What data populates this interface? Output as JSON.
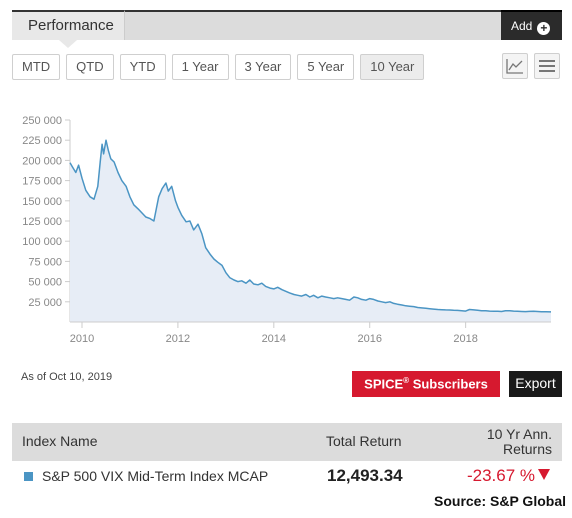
{
  "header": {
    "tab_label": "Performance",
    "add_label": "Add"
  },
  "periods": [
    "MTD",
    "QTD",
    "YTD",
    "1 Year",
    "3 Year",
    "5 Year",
    "10 Year"
  ],
  "active_period": "10 Year",
  "chart_icons": [
    "line-chart-icon",
    "menu-icon"
  ],
  "chart_data": {
    "type": "area",
    "y_ticks": [
      "250 000",
      "225 000",
      "200 000",
      "175 000",
      "150 000",
      "125 000",
      "100 000",
      "75 000",
      "50 000",
      "25 000"
    ],
    "x_ticks": [
      "2010",
      "2012",
      "2014",
      "2016",
      "2018"
    ],
    "ylim": [
      0,
      250000
    ],
    "xlim": [
      2009.75,
      2019.78
    ],
    "grid": false,
    "colors": {
      "line": "#4b95c4",
      "fill": "#e7edf6"
    },
    "series": [
      {
        "values": [
          [
            2009.75,
            197000
          ],
          [
            2009.8,
            192000
          ],
          [
            2009.87,
            185000
          ],
          [
            2009.93,
            194000
          ],
          [
            2010.0,
            178000
          ],
          [
            2010.08,
            163000
          ],
          [
            2010.17,
            155000
          ],
          [
            2010.25,
            152000
          ],
          [
            2010.33,
            168000
          ],
          [
            2010.38,
            198000
          ],
          [
            2010.42,
            220000
          ],
          [
            2010.45,
            208000
          ],
          [
            2010.5,
            225000
          ],
          [
            2010.55,
            212000
          ],
          [
            2010.6,
            202000
          ],
          [
            2010.67,
            198000
          ],
          [
            2010.75,
            185000
          ],
          [
            2010.83,
            175000
          ],
          [
            2010.92,
            168000
          ],
          [
            2011.0,
            155000
          ],
          [
            2011.08,
            145000
          ],
          [
            2011.17,
            140000
          ],
          [
            2011.25,
            135000
          ],
          [
            2011.33,
            130000
          ],
          [
            2011.42,
            128000
          ],
          [
            2011.5,
            125000
          ],
          [
            2011.55,
            140000
          ],
          [
            2011.6,
            155000
          ],
          [
            2011.67,
            165000
          ],
          [
            2011.75,
            172000
          ],
          [
            2011.8,
            162000
          ],
          [
            2011.87,
            168000
          ],
          [
            2011.95,
            150000
          ],
          [
            2012.0,
            142000
          ],
          [
            2012.08,
            132000
          ],
          [
            2012.17,
            124000
          ],
          [
            2012.25,
            125000
          ],
          [
            2012.33,
            114000
          ],
          [
            2012.42,
            121000
          ],
          [
            2012.5,
            109000
          ],
          [
            2012.58,
            92000
          ],
          [
            2012.67,
            84000
          ],
          [
            2012.75,
            78000
          ],
          [
            2012.83,
            74000
          ],
          [
            2012.92,
            70000
          ],
          [
            2013.0,
            61000
          ],
          [
            2013.08,
            55000
          ],
          [
            2013.17,
            52000
          ],
          [
            2013.25,
            50000
          ],
          [
            2013.33,
            51000
          ],
          [
            2013.42,
            48000
          ],
          [
            2013.5,
            52000
          ],
          [
            2013.58,
            47000
          ],
          [
            2013.67,
            46000
          ],
          [
            2013.75,
            48000
          ],
          [
            2013.83,
            44000
          ],
          [
            2013.92,
            42000
          ],
          [
            2014.0,
            41000
          ],
          [
            2014.08,
            43000
          ],
          [
            2014.17,
            40000
          ],
          [
            2014.25,
            38000
          ],
          [
            2014.33,
            36000
          ],
          [
            2014.42,
            34000
          ],
          [
            2014.5,
            33000
          ],
          [
            2014.58,
            32000
          ],
          [
            2014.67,
            34000
          ],
          [
            2014.75,
            31000
          ],
          [
            2014.83,
            33000
          ],
          [
            2014.92,
            30000
          ],
          [
            2015.0,
            32000
          ],
          [
            2015.08,
            31000
          ],
          [
            2015.17,
            30000
          ],
          [
            2015.25,
            29000
          ],
          [
            2015.33,
            30000
          ],
          [
            2015.42,
            29000
          ],
          [
            2015.5,
            28000
          ],
          [
            2015.58,
            27000
          ],
          [
            2015.67,
            31000
          ],
          [
            2015.75,
            30000
          ],
          [
            2015.83,
            28000
          ],
          [
            2015.92,
            27000
          ],
          [
            2016.0,
            29000
          ],
          [
            2016.08,
            28000
          ],
          [
            2016.17,
            26000
          ],
          [
            2016.25,
            25000
          ],
          [
            2016.33,
            24000
          ],
          [
            2016.42,
            25000
          ],
          [
            2016.5,
            23000
          ],
          [
            2016.58,
            22000
          ],
          [
            2016.67,
            21000
          ],
          [
            2016.75,
            20000
          ],
          [
            2016.83,
            19500
          ],
          [
            2016.92,
            19000
          ],
          [
            2017.0,
            18000
          ],
          [
            2017.08,
            17500
          ],
          [
            2017.17,
            17000
          ],
          [
            2017.25,
            16500
          ],
          [
            2017.33,
            16000
          ],
          [
            2017.42,
            15500
          ],
          [
            2017.5,
            15200
          ],
          [
            2017.58,
            15000
          ],
          [
            2017.67,
            14800
          ],
          [
            2017.75,
            14500
          ],
          [
            2017.83,
            14300
          ],
          [
            2017.92,
            14000
          ],
          [
            2018.0,
            13500
          ],
          [
            2018.08,
            15500
          ],
          [
            2018.17,
            15000
          ],
          [
            2018.25,
            14500
          ],
          [
            2018.33,
            14000
          ],
          [
            2018.42,
            13800
          ],
          [
            2018.5,
            13500
          ],
          [
            2018.58,
            13400
          ],
          [
            2018.67,
            13200
          ],
          [
            2018.75,
            13000
          ],
          [
            2018.83,
            13800
          ],
          [
            2018.92,
            14000
          ],
          [
            2019.0,
            13500
          ],
          [
            2019.08,
            13200
          ],
          [
            2019.17,
            13000
          ],
          [
            2019.25,
            12900
          ],
          [
            2019.33,
            13100
          ],
          [
            2019.42,
            13300
          ],
          [
            2019.5,
            13000
          ],
          [
            2019.58,
            12800
          ],
          [
            2019.67,
            12600
          ],
          [
            2019.78,
            12493
          ]
        ]
      }
    ]
  },
  "as_of": "As of Oct 10, 2019",
  "spice_label": "SPICE",
  "spice_sup": "®",
  "spice_suffix": " Subscribers",
  "export_label": "Export",
  "table": {
    "headers": {
      "name": "Index Name",
      "total": "Total Return",
      "ann_line1": "10 Yr Ann.",
      "ann_line2": "Returns"
    },
    "rows": [
      {
        "name": "S&P 500 VIX Mid-Term Index MCAP",
        "total": "12,493.34",
        "ann": "-23.67 %",
        "swatch": "#4b95c4"
      }
    ]
  },
  "source": "Source: S&P Global"
}
